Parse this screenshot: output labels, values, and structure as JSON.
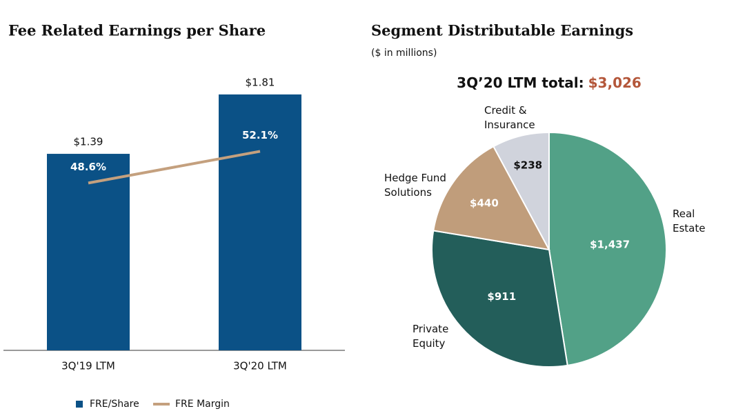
{
  "chart_data": [
    {
      "type": "bar",
      "title": "Fee Related Earnings per Share",
      "categories": [
        "3Q'19 LTM",
        "3Q'20 LTM"
      ],
      "series": [
        {
          "name": "FRE/Share",
          "color": "#0b5186",
          "values": [
            1.39,
            1.81
          ],
          "value_labels": [
            "$1.39",
            "$1.81"
          ]
        },
        {
          "name": "FRE Margin",
          "color": "#c4a07e",
          "type": "line",
          "axis": "y2",
          "values": [
            48.6,
            52.1
          ],
          "value_labels": [
            "48.6%",
            "52.1%"
          ]
        }
      ],
      "legend": "bottom"
    },
    {
      "type": "pie",
      "title": "Segment Distributable Earnings",
      "subtitle": "($ in millions)",
      "total_label": "3Q’20 LTM total:",
      "total": "$3,026",
      "categories": [
        "Real Estate",
        "Private Equity",
        "Hedge Fund Solutions",
        "Credit & Insurance"
      ],
      "values": [
        1437,
        911,
        440,
        238
      ],
      "value_labels": [
        "$1,437",
        "$911",
        "$440",
        "$238"
      ],
      "colors": [
        "#52a187",
        "#235e5a",
        "#c09d7b",
        "#d0d3dc"
      ]
    }
  ]
}
